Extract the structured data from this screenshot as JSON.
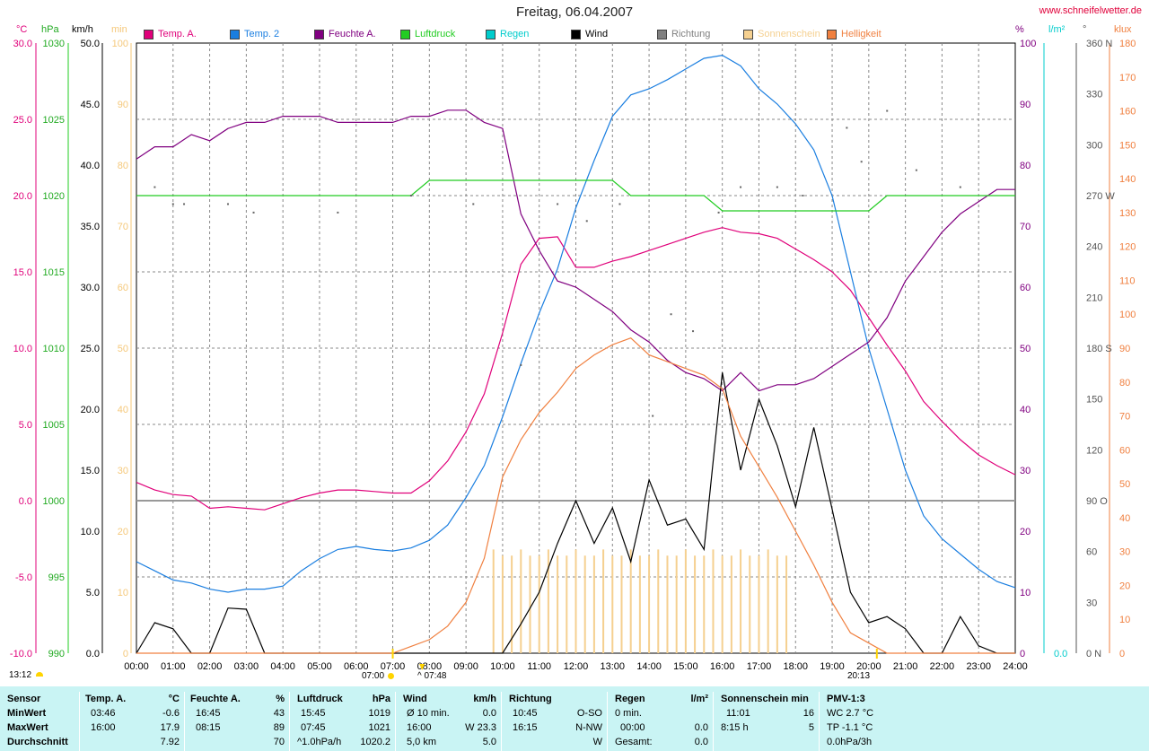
{
  "title": "Freitag, 06.04.2007",
  "website": "www.schneifelwetter.de",
  "colors": {
    "temp_a": "#e0007a",
    "temp_2": "#1a7ee0",
    "feuchte": "#800080",
    "luftdruck": "#22cc22",
    "regen": "#00cccc",
    "wind": "#000000",
    "richtung": "#555555",
    "sonnenschein": "#f5c87a",
    "helligkeit": "#f08040",
    "footer_bg": "#c9f4f4"
  },
  "units": {
    "temp": "°C",
    "hpa": "hPa",
    "kmh": "km/h",
    "min": "min",
    "percent": "%",
    "rain": "l/m²",
    "dir": "°",
    "klux": "klux"
  },
  "legend": [
    {
      "label": "Temp. A.",
      "color": "#e0007a"
    },
    {
      "label": "Temp. 2",
      "color": "#1a7ee0"
    },
    {
      "label": "Feuchte A.",
      "color": "#800080"
    },
    {
      "label": "Luftdruck",
      "color": "#22cc22"
    },
    {
      "label": "Regen",
      "color": "#00cccc"
    },
    {
      "label": "Wind",
      "color": "#000000"
    },
    {
      "label": "Richtung",
      "color": "#808080"
    },
    {
      "label": "Sonnenschein",
      "color": "#f5d090"
    },
    {
      "label": "Helligkeit",
      "color": "#f08040"
    }
  ],
  "chart_data": {
    "type": "line",
    "x_ticks": [
      "00:00",
      "01:00",
      "02:00",
      "03:00",
      "04:00",
      "05:00",
      "06:00",
      "07:00",
      "08:00",
      "09:00",
      "10:00",
      "11:00",
      "12:00",
      "13:00",
      "14:00",
      "15:00",
      "16:00",
      "17:00",
      "18:00",
      "19:00",
      "20:00",
      "21:00",
      "22:00",
      "23:00",
      "24:00"
    ],
    "axes": {
      "temp": {
        "ticks": [
          "30.0",
          "25.0",
          "20.0",
          "15.0",
          "10.0",
          "5.0",
          "0.0",
          "-5.0",
          "-10.0"
        ],
        "range": [
          -10,
          30
        ]
      },
      "pressure": {
        "ticks": [
          "1030",
          "1025",
          "1020",
          "1015",
          "1010",
          "1005",
          "1000",
          "995",
          "990"
        ],
        "range": [
          990,
          1030
        ]
      },
      "wind": {
        "ticks": [
          "50.0",
          "45.0",
          "40.0",
          "35.0",
          "30.0",
          "25.0",
          "20.0",
          "15.0",
          "10.0",
          "5.0",
          "0.0"
        ],
        "range": [
          0,
          50
        ]
      },
      "sun": {
        "ticks": [
          "100",
          "90",
          "80",
          "70",
          "60",
          "50",
          "40",
          "30",
          "20",
          "10",
          "0"
        ],
        "range": [
          0,
          100
        ]
      },
      "humidity": {
        "ticks": [
          "100",
          "90",
          "80",
          "70",
          "60",
          "50",
          "40",
          "30",
          "20",
          "10",
          "0"
        ],
        "range": [
          0,
          100
        ]
      },
      "rain": {
        "ticks": [
          "0.0"
        ]
      },
      "direction": {
        "ticks": [
          "360 N",
          "330",
          "300",
          "270 W",
          "240",
          "210",
          "180 S",
          "150",
          "120",
          "90 O",
          "60",
          "30",
          "0 N"
        ],
        "range": [
          0,
          360
        ]
      },
      "klux": {
        "ticks": [
          "180",
          "170",
          "160",
          "150",
          "140",
          "130",
          "120",
          "110",
          "100",
          "90",
          "80",
          "70",
          "60",
          "50",
          "40",
          "30",
          "20",
          "10",
          "0"
        ],
        "range": [
          0,
          180
        ]
      }
    },
    "series": [
      {
        "name": "Temp. A.",
        "axis": "temp",
        "hours": [
          0,
          0.5,
          1,
          1.5,
          2,
          2.5,
          3,
          3.5,
          4,
          4.5,
          5,
          5.5,
          6,
          6.5,
          7,
          7.5,
          8,
          8.5,
          9,
          9.5,
          10,
          10.5,
          11,
          11.5,
          12,
          12.5,
          13,
          13.5,
          14,
          14.5,
          15,
          15.5,
          16,
          16.5,
          17,
          17.5,
          18,
          18.5,
          19,
          19.5,
          20,
          20.5,
          21,
          21.5,
          22,
          22.5,
          23,
          23.5,
          24
        ],
        "values": [
          1.2,
          0.7,
          0.4,
          0.3,
          -0.5,
          -0.4,
          -0.5,
          -0.6,
          -0.2,
          0.2,
          0.5,
          0.7,
          0.7,
          0.6,
          0.5,
          0.5,
          1.3,
          2.6,
          4.5,
          7,
          11,
          15.5,
          17.2,
          17.3,
          15.3,
          15.3,
          15.7,
          16,
          16.4,
          16.8,
          17.2,
          17.6,
          17.9,
          17.6,
          17.5,
          17.2,
          16.5,
          15.8,
          15,
          13.8,
          12,
          10.2,
          8.5,
          6.5,
          5.2,
          4,
          3,
          2.3,
          1.7
        ]
      },
      {
        "name": "Temp. 2",
        "axis": "temp",
        "hours": [
          0,
          0.5,
          1,
          1.5,
          2,
          2.5,
          3,
          3.5,
          4,
          4.5,
          5,
          5.5,
          6,
          6.5,
          7,
          7.5,
          8,
          8.5,
          9,
          9.5,
          10,
          10.5,
          11,
          11.5,
          12,
          12.5,
          13,
          13.5,
          14,
          14.5,
          15,
          15.5,
          16,
          16.5,
          17,
          17.5,
          18,
          18.5,
          19,
          19.5,
          20,
          20.5,
          21,
          21.5,
          22,
          22.5,
          23,
          23.5,
          24
        ],
        "values": [
          -4,
          -4.6,
          -5.2,
          -5.4,
          -5.8,
          -6,
          -5.8,
          -5.8,
          -5.6,
          -4.6,
          -3.8,
          -3.2,
          -3,
          -3.2,
          -3.3,
          -3.1,
          -2.6,
          -1.6,
          0.2,
          2.3,
          5.5,
          9,
          12.3,
          15.2,
          19.2,
          22.3,
          25.2,
          26.6,
          27,
          27.6,
          28.3,
          29,
          29.2,
          28.5,
          27,
          26,
          24.7,
          23,
          20,
          15,
          10,
          6,
          2,
          -1,
          -2.5,
          -3.5,
          -4.5,
          -5.3,
          -5.7
        ]
      },
      {
        "name": "Feuchte A.",
        "axis": "humidity",
        "hours": [
          0,
          0.5,
          1,
          1.5,
          2,
          2.5,
          3,
          3.5,
          4,
          4.5,
          5,
          5.5,
          6,
          6.5,
          7,
          7.5,
          8,
          8.5,
          9,
          9.5,
          10,
          10.5,
          11,
          11.5,
          12,
          12.5,
          13,
          13.5,
          14,
          14.5,
          15,
          15.5,
          16,
          16.5,
          17,
          17.5,
          18,
          18.5,
          19,
          19.5,
          20,
          20.5,
          21,
          21.5,
          22,
          22.5,
          23,
          23.5,
          24
        ],
        "values": [
          81,
          83,
          83,
          85,
          84,
          86,
          87,
          87,
          88,
          88,
          88,
          87,
          87,
          87,
          87,
          88,
          88,
          89,
          89,
          87,
          86,
          72,
          66,
          61,
          60,
          58,
          56,
          53,
          51,
          48,
          46,
          45,
          43,
          46,
          43,
          44,
          44,
          45,
          47,
          49,
          51,
          55,
          61,
          65,
          69,
          72,
          74,
          76,
          76
        ]
      },
      {
        "name": "Luftdruck",
        "axis": "pressure",
        "hours": [
          0,
          0.5,
          1,
          1.5,
          2,
          2.5,
          3,
          3.5,
          4,
          4.5,
          5,
          5.5,
          6,
          6.5,
          7,
          7.5,
          8,
          8.5,
          9,
          9.5,
          10,
          10.5,
          11,
          11.5,
          12,
          12.5,
          13,
          13.5,
          14,
          14.5,
          15,
          15.5,
          16,
          16.5,
          17,
          17.5,
          18,
          18.5,
          19,
          19.5,
          20,
          20.5,
          21,
          21.5,
          22,
          22.5,
          23,
          23.5,
          24
        ],
        "values": [
          1020,
          1020,
          1020,
          1020,
          1020,
          1020,
          1020,
          1020,
          1020,
          1020,
          1020,
          1020,
          1020,
          1020,
          1020,
          1020,
          1021,
          1021,
          1021,
          1021,
          1021,
          1021,
          1021,
          1021,
          1021,
          1021,
          1021,
          1020,
          1020,
          1020,
          1020,
          1020,
          1019,
          1019,
          1019,
          1019,
          1019,
          1019,
          1019,
          1019,
          1019,
          1020,
          1020,
          1020,
          1020,
          1020,
          1020,
          1020,
          1020
        ]
      },
      {
        "name": "Wind",
        "axis": "wind",
        "hours": [
          0,
          0.5,
          1,
          1.5,
          2,
          2.5,
          3,
          3.5,
          4,
          4.5,
          5,
          5.5,
          6,
          6.5,
          7,
          7.5,
          8,
          8.5,
          9,
          9.5,
          10,
          10.5,
          11,
          11.5,
          12,
          12.5,
          13,
          13.5,
          14,
          14.5,
          15,
          15.5,
          16,
          16.5,
          17,
          17.5,
          18,
          18.5,
          19,
          19.5,
          20,
          20.5,
          21,
          21.5,
          22,
          22.5,
          23,
          23.5,
          24
        ],
        "values": [
          0,
          2.5,
          2,
          0,
          0,
          3.7,
          3.6,
          0,
          0,
          0,
          0,
          0,
          0,
          0,
          0,
          0,
          0,
          0,
          0,
          0,
          0,
          2.4,
          5,
          9,
          12.5,
          9,
          11.9,
          7.5,
          14.2,
          10.5,
          11,
          8.5,
          23,
          15,
          20.8,
          17,
          12,
          18.5,
          11.8,
          5,
          2.5,
          3,
          2,
          0,
          0,
          3,
          0.6,
          0,
          0
        ]
      },
      {
        "name": "Helligkeit",
        "axis": "klux",
        "hours": [
          0,
          0.5,
          1,
          1.5,
          2,
          2.5,
          3,
          3.5,
          4,
          4.5,
          5,
          5.5,
          6,
          6.5,
          7,
          7.5,
          8,
          8.5,
          9,
          9.5,
          10,
          10.5,
          11,
          11.5,
          12,
          12.5,
          13,
          13.5,
          14,
          14.5,
          15,
          15.5,
          16,
          16.5,
          17,
          17.5,
          18,
          18.5,
          19,
          19.5,
          20,
          20.5,
          21,
          21.5,
          22,
          22.5,
          23,
          23.5,
          24
        ],
        "values": [
          0,
          0,
          0,
          0,
          0,
          0,
          0,
          0,
          0,
          0,
          0,
          0,
          0,
          0,
          0,
          2,
          4,
          8,
          15,
          28,
          52,
          63,
          71,
          77,
          84,
          88,
          91,
          93,
          88,
          86,
          84,
          82,
          78,
          64,
          55,
          46,
          36,
          26,
          15,
          6,
          3,
          0,
          0,
          0,
          0,
          0,
          0,
          0,
          0
        ]
      },
      {
        "name": "Richtung",
        "axis": "direction",
        "hours": [
          0.5,
          1,
          1.3,
          2.5,
          3.2,
          5.5,
          7.5,
          9.2,
          10.5,
          11.5,
          12.3,
          13.2,
          14.1,
          14.6,
          15.2,
          15.9,
          16.5,
          17.5,
          18.2,
          19.4,
          19.8,
          20.5,
          21.3,
          22.5
        ],
        "values": [
          275,
          265,
          265,
          265,
          260,
          260,
          270,
          265,
          170,
          265,
          255,
          265,
          140,
          200,
          190,
          260,
          275,
          275,
          270,
          310,
          290,
          320,
          285,
          275
        ]
      }
    ],
    "sunshine": {
      "start_hour": 9.75,
      "end_hour": 17.75,
      "height_min": 16
    },
    "markers": {
      "sunrise": "07:00",
      "sunset": "20:13",
      "highlight": "^ 07:48",
      "time_label": "13:12"
    }
  },
  "footer": {
    "sensor": {
      "header": "Sensor",
      "rows": [
        "MinWert",
        "MaxWert",
        "Durchschnitt"
      ]
    },
    "temp_a": {
      "header": "Temp. A.",
      "unit": "°C",
      "rows": [
        [
          "03:46",
          "-0.6"
        ],
        [
          "16:00",
          "17.9"
        ],
        [
          "",
          "7.92"
        ]
      ]
    },
    "feuchte": {
      "header": "Feuchte A.",
      "unit": "%",
      "rows": [
        [
          "16:45",
          "43"
        ],
        [
          "08:15",
          "89"
        ],
        [
          "",
          "70"
        ]
      ]
    },
    "luftdruck": {
      "header": "Luftdruck",
      "unit": "hPa",
      "rows": [
        [
          "15:45",
          "1019"
        ],
        [
          "07:45",
          "1021"
        ],
        [
          "^1.0hPa/h",
          "1020.2"
        ]
      ]
    },
    "wind": {
      "header": "Wind",
      "unit": "km/h",
      "rows": [
        [
          "Ø 10 min.",
          "0.0"
        ],
        [
          "16:00",
          "W 23.3"
        ],
        [
          "5,0 km",
          "5.0"
        ]
      ]
    },
    "richtung": {
      "header": "Richtung",
      "unit": "",
      "rows": [
        [
          "10:45",
          "O-SO"
        ],
        [
          "16:15",
          "N-NW"
        ],
        [
          "",
          "W"
        ]
      ]
    },
    "regen": {
      "header": "Regen",
      "unit": "l/m²",
      "rows": [
        [
          "0 min.",
          ""
        ],
        [
          "00:00",
          "0.0"
        ],
        [
          "Gesamt:",
          "0.0"
        ]
      ]
    },
    "sonnenschein": {
      "header": "Sonnenschein min",
      "unit": "",
      "rows": [
        [
          "11:01",
          "16"
        ],
        [
          "8:15 h",
          "5"
        ],
        [
          "",
          ""
        ]
      ]
    },
    "pmv": {
      "header": "PMV-1:3",
      "rows": [
        "WC 2.7 °C",
        "TP -1.1 °C",
        "0.0hPa/3h"
      ]
    }
  }
}
